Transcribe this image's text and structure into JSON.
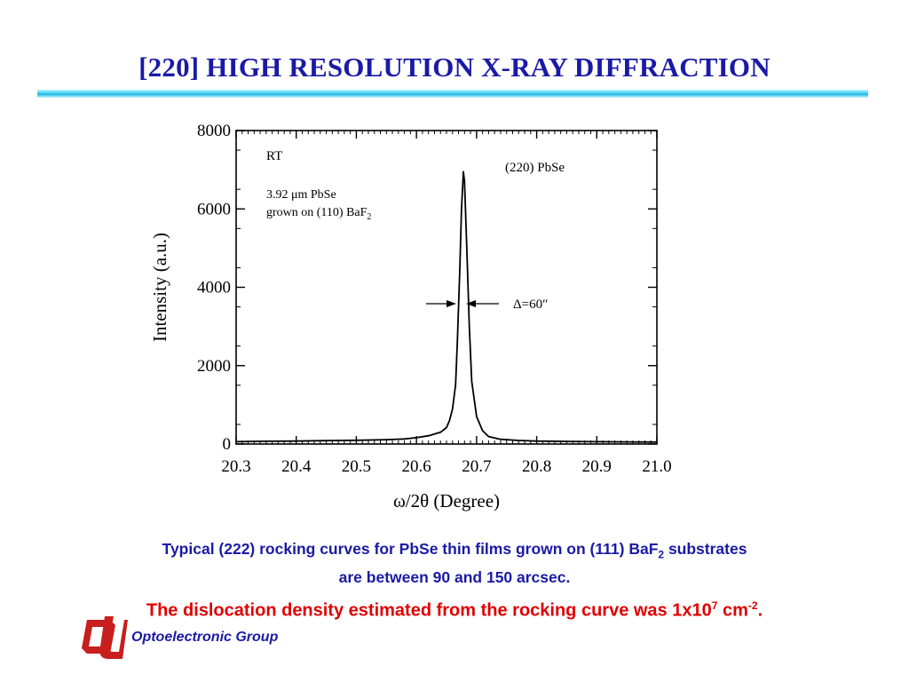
{
  "slide": {
    "title": "[220] HIGH RESOLUTION X-RAY DIFFRACTION",
    "caption_line1_a": "Typical (222) rocking curves for PbSe thin films grown on (111) BaF",
    "caption_line1_sub": "2",
    "caption_line1_b": " substrates",
    "caption_line2": "are between 90 and 150 arcsec.",
    "dislocation_a": "The dislocation density estimated from the rocking curve was 1x10",
    "dislocation_sup1": "7",
    "dislocation_b": " cm",
    "dislocation_sup2": "-2",
    "dislocation_c": ".",
    "group_name": "Optoelectronic Group",
    "logo_icon": "ou-logo-icon",
    "logo_color": "#c81e1e",
    "title_color": "#1a1aa6",
    "alert_color": "#e00000"
  },
  "chart_data": {
    "type": "line",
    "title": "",
    "xlabel": "ω/2θ (Degree)",
    "ylabel": "Intensity (a.u.)",
    "xlim": [
      20.3,
      21.0
    ],
    "ylim": [
      0,
      8000
    ],
    "x_ticks": [
      "20.3",
      "20.4",
      "20.5",
      "20.6",
      "20.7",
      "20.8",
      "20.9",
      "21.0"
    ],
    "y_ticks": [
      "0",
      "2000",
      "4000",
      "6000",
      "8000"
    ],
    "grid": false,
    "annotations": {
      "condition": "RT",
      "sample_line1": "3.92 μm PbSe",
      "sample_line2_a": "grown on (110) BaF",
      "sample_line2_sub": "2",
      "peak_label": "(220) PbSe",
      "fwhm_label": "Δ=60″"
    },
    "series": [
      {
        "x": [
          20.3,
          20.35,
          20.4,
          20.45,
          20.5,
          20.55,
          20.58,
          20.6,
          20.62,
          20.64,
          20.65,
          20.655,
          20.66,
          20.665,
          20.668,
          20.672,
          20.675,
          20.678,
          20.68,
          20.684,
          20.688,
          20.692,
          20.7,
          20.71,
          20.72,
          20.74,
          20.77,
          20.8,
          20.85,
          20.9,
          20.95,
          21.0
        ],
        "y": [
          60,
          70,
          75,
          85,
          95,
          110,
          130,
          160,
          210,
          300,
          420,
          600,
          900,
          1500,
          2600,
          4400,
          6000,
          6950,
          6700,
          4900,
          3000,
          1600,
          700,
          340,
          190,
          120,
          90,
          75,
          65,
          60,
          55,
          50
        ]
      }
    ]
  }
}
